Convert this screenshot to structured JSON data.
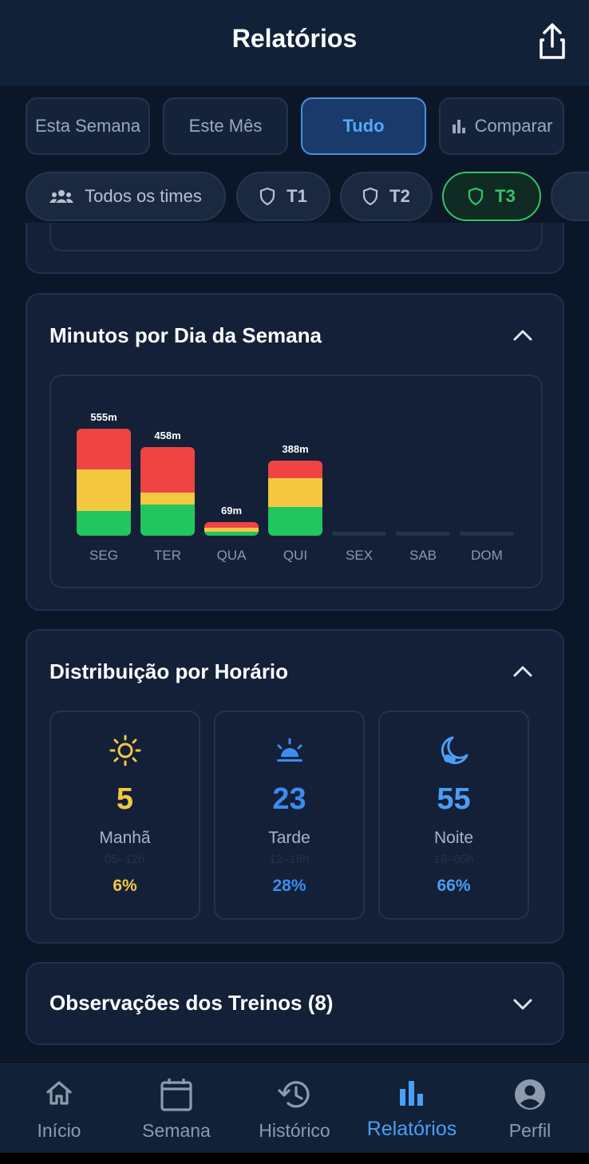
{
  "header": {
    "title": "Relatórios",
    "share_icon": "share-icon"
  },
  "period_tabs": [
    {
      "label": "Esta Semana",
      "active": false
    },
    {
      "label": "Este Mês",
      "active": false
    },
    {
      "label": "Tudo",
      "active": true
    },
    {
      "label": "Comparar",
      "active": false,
      "icon": "bar-chart-icon"
    }
  ],
  "team_chips": [
    {
      "label": "Todos os times",
      "icon": "groups-icon",
      "active": false
    },
    {
      "label": "T1",
      "icon": "shield-icon",
      "active": false
    },
    {
      "label": "T2",
      "icon": "shield-icon",
      "active": false
    },
    {
      "label": "T3",
      "icon": "shield-icon",
      "active": true
    }
  ],
  "weekday_card": {
    "title": "Minutos por Dia da Semana",
    "expanded": true
  },
  "chart_data": {
    "type": "bar",
    "stacked": true,
    "categories": [
      "SEG",
      "TER",
      "QUA",
      "QUI",
      "SEX",
      "SAB",
      "DOM"
    ],
    "totals_labels": [
      "555m",
      "458m",
      "69m",
      "388m",
      "",
      "",
      ""
    ],
    "totals": [
      555,
      458,
      69,
      388,
      0,
      0,
      0
    ],
    "series": [
      {
        "color": "#22c55e",
        "values": [
          130,
          160,
          20,
          150,
          0,
          0,
          0
        ]
      },
      {
        "color": "#f5c842",
        "values": [
          215,
          62,
          20,
          148,
          0,
          0,
          0
        ]
      },
      {
        "color": "#ef4444",
        "values": [
          210,
          236,
          29,
          90,
          0,
          0,
          0
        ]
      }
    ],
    "ylim": [
      0,
      555
    ]
  },
  "time_card": {
    "title": "Distribuição por Horário",
    "expanded": true,
    "slots": [
      {
        "icon": "sun-icon",
        "count": "5",
        "name": "Manhã",
        "range": "05–12h",
        "percent": "6%",
        "color": "#f5c842"
      },
      {
        "icon": "sunset-icon",
        "count": "23",
        "name": "Tarde",
        "range": "12–18h",
        "percent": "28%",
        "color": "#3b8df0"
      },
      {
        "icon": "moon-icon",
        "count": "55",
        "name": "Noite",
        "range": "18–05h",
        "percent": "66%",
        "color": "#4a9ff5"
      }
    ]
  },
  "notes_card": {
    "title": "Observações dos Treinos (8)",
    "expanded": false
  },
  "bottom_nav": [
    {
      "label": "Início",
      "icon": "home-icon",
      "active": false
    },
    {
      "label": "Semana",
      "icon": "calendar-icon",
      "active": false
    },
    {
      "label": "Histórico",
      "icon": "history-icon",
      "active": false
    },
    {
      "label": "Relatórios",
      "icon": "bar-chart-icon",
      "active": true
    },
    {
      "label": "Perfil",
      "icon": "profile-icon",
      "active": false
    }
  ]
}
